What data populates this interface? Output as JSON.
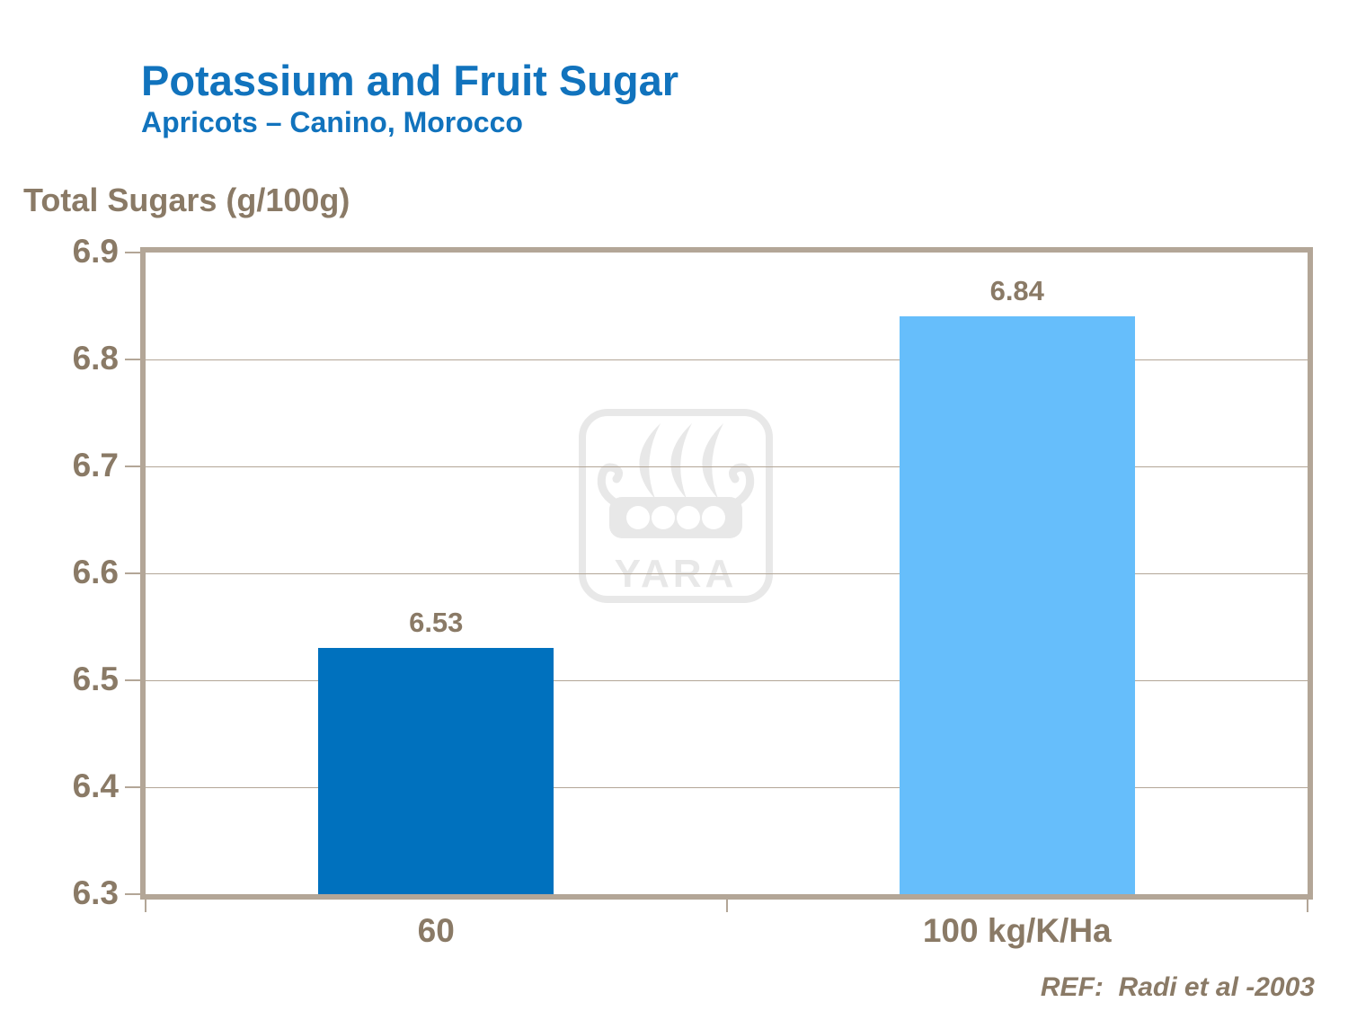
{
  "header": {
    "title": "Potassium and Fruit Sugar",
    "subtitle": "Apricots – Canino, Morocco"
  },
  "footer": {
    "reference": "REF:  Radi et al -2003"
  },
  "watermark": {
    "brand": "YARA"
  },
  "colors": {
    "title_blue": "#1173bd",
    "text_brown": "#8a7a66",
    "axis_tan": "#b3a697",
    "bar_dark_blue": "#0071be",
    "bar_light_blue": "#66befb",
    "watermark_gray": "#e8e8e8"
  },
  "chart_data": {
    "type": "bar",
    "title": "Potassium and Fruit Sugar",
    "subtitle": "Apricots – Canino, Morocco",
    "xlabel": "",
    "ylabel": "Total Sugars (g/100g)",
    "categories": [
      "60",
      "100 kg/K/Ha"
    ],
    "values": [
      6.53,
      6.84
    ],
    "value_labels": [
      "6.53",
      "6.84"
    ],
    "bar_colors": [
      "#0071be",
      "#66befb"
    ],
    "ylim": [
      6.3,
      6.9
    ],
    "ytick_step": 0.1,
    "yticks": [
      6.3,
      6.4,
      6.5,
      6.6,
      6.7,
      6.8,
      6.9
    ],
    "grid": true,
    "legend": false,
    "annotations": [
      "REF:  Radi et al -2003"
    ]
  }
}
